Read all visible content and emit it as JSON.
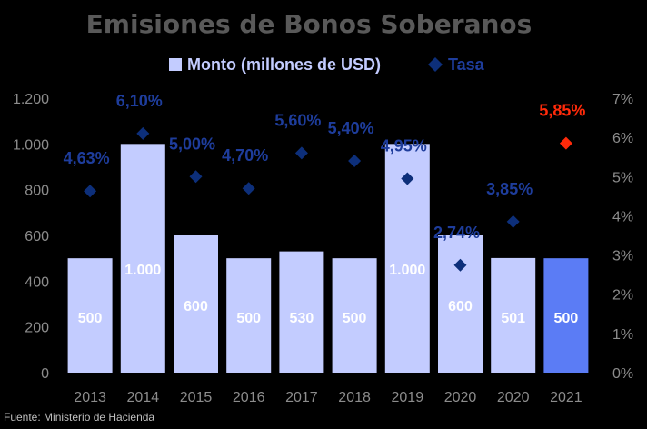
{
  "chart_data": {
    "type": "bar",
    "title": "Emisiones de Bonos Soberanos",
    "categories": [
      "2013",
      "2014",
      "2015",
      "2016",
      "2017",
      "2018",
      "2019",
      "2020",
      "2020",
      "2021"
    ],
    "series": [
      {
        "name": "Monto (millones de USD)",
        "type": "bar",
        "axis": "left",
        "values": [
          500,
          1000,
          600,
          500,
          530,
          500,
          1000,
          600,
          501,
          500
        ],
        "labels": [
          "500",
          "1.000",
          "600",
          "500",
          "530",
          "500",
          "1.000",
          "600",
          "501",
          "500"
        ]
      },
      {
        "name": "Tasa",
        "type": "scatter",
        "axis": "right",
        "values": [
          4.63,
          6.1,
          5.0,
          4.7,
          5.6,
          5.4,
          4.95,
          2.74,
          3.85,
          5.85
        ],
        "labels": [
          "4,63%",
          "6,10%",
          "5,00%",
          "4,70%",
          "5,60%",
          "5,40%",
          "4,95%",
          "2,74%",
          "3,85%",
          "5,85%"
        ]
      }
    ],
    "y_left": {
      "min": 0,
      "max": 1200,
      "ticks": [
        0,
        200,
        400,
        600,
        800,
        1000,
        1200
      ],
      "tick_labels": [
        "0",
        "200",
        "400",
        "600",
        "800",
        "1.000",
        "1.200"
      ]
    },
    "y_right": {
      "min": 0,
      "max": 7,
      "ticks": [
        0,
        1,
        2,
        3,
        4,
        5,
        6,
        7
      ],
      "tick_labels": [
        "0%",
        "1%",
        "2%",
        "3%",
        "4%",
        "5%",
        "6%",
        "7%"
      ]
    },
    "legend_position": "top",
    "grid": false,
    "colors": {
      "bar": "#c3ccff",
      "bar_highlight": "#5b7cf5",
      "marker": "#0d2f7a",
      "marker_highlight": "#ff2a0a",
      "label": "#1e3d9c",
      "label_highlight": "#ff2a0a",
      "bar_label": "#ffffff",
      "axis_text": "#8c8c8c",
      "title": "#595959"
    },
    "highlight_index": 9
  },
  "source": "Fuente: Ministerio de Hacienda"
}
